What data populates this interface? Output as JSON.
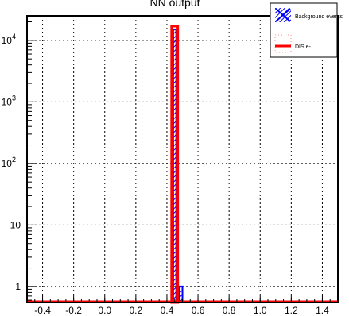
{
  "chart_data": {
    "type": "bar",
    "title": "NN output",
    "xlabel": "",
    "ylabel": "",
    "xlim": [
      -0.5,
      1.5
    ],
    "ylim": [
      0.55,
      25000
    ],
    "yscale": "log",
    "grid": true,
    "legend_position": "top-right",
    "x_ticks": [
      "-0.4",
      "-0.2",
      "0.0",
      "0.2",
      "0.4",
      "0.6",
      "0.8",
      "1.0",
      "1.2",
      "1.4"
    ],
    "y_ticks": [
      {
        "value": 1,
        "label": "1"
      },
      {
        "value": 10,
        "label": "10"
      },
      {
        "value": 100,
        "label": "10",
        "exponent": "2"
      },
      {
        "value": 1000,
        "label": "10",
        "exponent": "3"
      },
      {
        "value": 10000,
        "label": "10",
        "exponent": "4"
      }
    ],
    "series": [
      {
        "name": "Background events",
        "color": "#0000ff",
        "style": "hatched",
        "bins": [
          {
            "x0": 0.44,
            "x1": 0.46,
            "value": 15000
          },
          {
            "x0": 0.48,
            "x1": 0.5,
            "value": 1
          }
        ]
      },
      {
        "name": "DIS e-",
        "color": "#ff0000",
        "style": "outline",
        "bins": [
          {
            "x0": 0.43,
            "x1": 0.47,
            "value": 17000
          }
        ]
      }
    ]
  }
}
